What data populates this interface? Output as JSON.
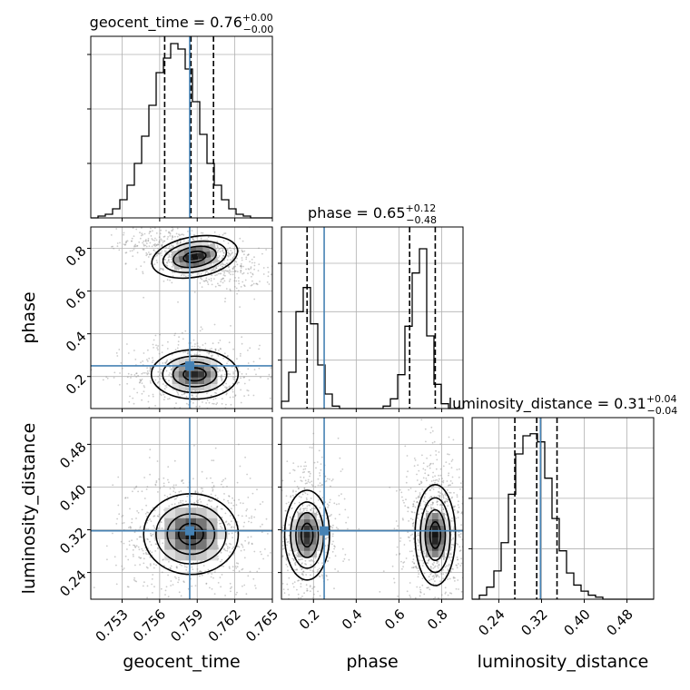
{
  "chart_data": {
    "type": "corner",
    "parameters": [
      {
        "name": "geocent_time",
        "label": "geocent_time",
        "range": [
          0.7505,
          0.765
        ],
        "ticks": [
          0.753,
          0.756,
          0.759,
          0.762,
          0.765
        ],
        "tick_labels": [
          "0.753",
          "0.756",
          "0.759",
          "0.762",
          "0.765"
        ],
        "truth": 0.7584,
        "quantiles": [
          0.7564,
          0.7585,
          0.7603
        ],
        "title_value": "0.76",
        "title_plus": "+0.00",
        "title_minus": "−0.00",
        "title_prefix": "geocent_time = "
      },
      {
        "name": "phase",
        "label": "phase",
        "range": [
          0.05,
          0.9
        ],
        "ticks": [
          0.2,
          0.4,
          0.6,
          0.8
        ],
        "tick_labels": [
          "0.2",
          "0.4",
          "0.6",
          "0.8"
        ],
        "truth": 0.25,
        "quantiles": [
          0.17,
          0.65,
          0.77
        ],
        "title_value": "0.65",
        "title_plus": "+0.12",
        "title_minus": "−0.48",
        "title_prefix": "phase = "
      },
      {
        "name": "luminosity_distance",
        "label": "luminosity_distance",
        "range": [
          0.19,
          0.53
        ],
        "ticks": [
          0.24,
          0.32,
          0.4,
          0.48
        ],
        "tick_labels": [
          "0.24",
          "0.32",
          "0.40",
          "0.48"
        ],
        "truth": 0.318,
        "quantiles": [
          0.27,
          0.311,
          0.349
        ],
        "title_value": "0.31",
        "title_plus": "+0.04",
        "title_minus": "−0.04",
        "title_prefix": "luminosity_distance = "
      }
    ],
    "histograms": [
      {
        "param": "geocent_time",
        "bin_edges": [
          0.7505,
          0.75108,
          0.75166,
          0.75224,
          0.75282,
          0.7534,
          0.75398,
          0.75456,
          0.75514,
          0.75572,
          0.7563,
          0.75688,
          0.75746,
          0.75804,
          0.75862,
          0.7592,
          0.75978,
          0.76036,
          0.76094,
          0.76152,
          0.7621,
          0.76268,
          0.76326,
          0.76384,
          0.76442,
          0.765
        ],
        "counts": [
          0,
          1,
          2,
          5,
          10,
          18,
          30,
          45,
          62,
          80,
          88,
          96,
          93,
          82,
          64,
          46,
          30,
          18,
          10,
          5,
          2,
          1,
          0,
          0,
          0
        ],
        "ymax": 100,
        "yticks": [
          30,
          60,
          90
        ]
      },
      {
        "param": "phase",
        "bin_edges": [
          0.05,
          0.084,
          0.118,
          0.152,
          0.186,
          0.22,
          0.254,
          0.288,
          0.322,
          0.356,
          0.39,
          0.424,
          0.458,
          0.492,
          0.526,
          0.56,
          0.594,
          0.628,
          0.662,
          0.696,
          0.73,
          0.764,
          0.798,
          0.832,
          0.866,
          0.9
        ],
        "counts": [
          3,
          15,
          40,
          50,
          35,
          18,
          6,
          1,
          0,
          0,
          0,
          0,
          0,
          0,
          1,
          4,
          14,
          34,
          56,
          66,
          30,
          10,
          2,
          0,
          0
        ],
        "ymax": 75,
        "yticks": [
          20,
          40,
          60
        ]
      },
      {
        "param": "luminosity_distance",
        "bin_edges": [
          0.19,
          0.2036,
          0.2172,
          0.2308,
          0.2444,
          0.258,
          0.2716,
          0.2852,
          0.2988,
          0.3124,
          0.326,
          0.3396,
          0.3532,
          0.3668,
          0.3804,
          0.394,
          0.4076,
          0.4212,
          0.4348,
          0.4484,
          0.462,
          0.4756,
          0.4892,
          0.5028,
          0.5164,
          0.53
        ],
        "counts": [
          0,
          2,
          6,
          14,
          28,
          52,
          72,
          81,
          82,
          78,
          60,
          40,
          24,
          13,
          7,
          4,
          2,
          1,
          0,
          0,
          0,
          0,
          0,
          0,
          0
        ],
        "ymax": 90,
        "yticks": [
          25,
          50,
          75
        ]
      }
    ],
    "pairs": [
      {
        "x": "geocent_time",
        "y": "phase",
        "modes": [
          {
            "cx": 0.7588,
            "cy": 0.76,
            "sx": 0.00165,
            "sy": 0.045,
            "rho": -0.55,
            "weight": 1.0
          },
          {
            "cx": 0.7588,
            "cy": 0.21,
            "sx": 0.00165,
            "sy": 0.055,
            "rho": 0.0,
            "weight": 0.7
          }
        ]
      },
      {
        "x": "geocent_time",
        "y": "luminosity_distance",
        "modes": [
          {
            "cx": 0.7585,
            "cy": 0.312,
            "sx": 0.0018,
            "sy": 0.036,
            "rho": 0.0,
            "weight": 1.0
          }
        ]
      },
      {
        "x": "phase",
        "y": "luminosity_distance",
        "modes": [
          {
            "cx": 0.17,
            "cy": 0.31,
            "sx": 0.05,
            "sy": 0.04,
            "rho": 0.0,
            "weight": 0.7
          },
          {
            "cx": 0.77,
            "cy": 0.31,
            "sx": 0.045,
            "sy": 0.045,
            "rho": 0.0,
            "weight": 1.0
          }
        ]
      }
    ],
    "grid": true,
    "truth_color": "#4682b4",
    "line_color": "#000000"
  }
}
